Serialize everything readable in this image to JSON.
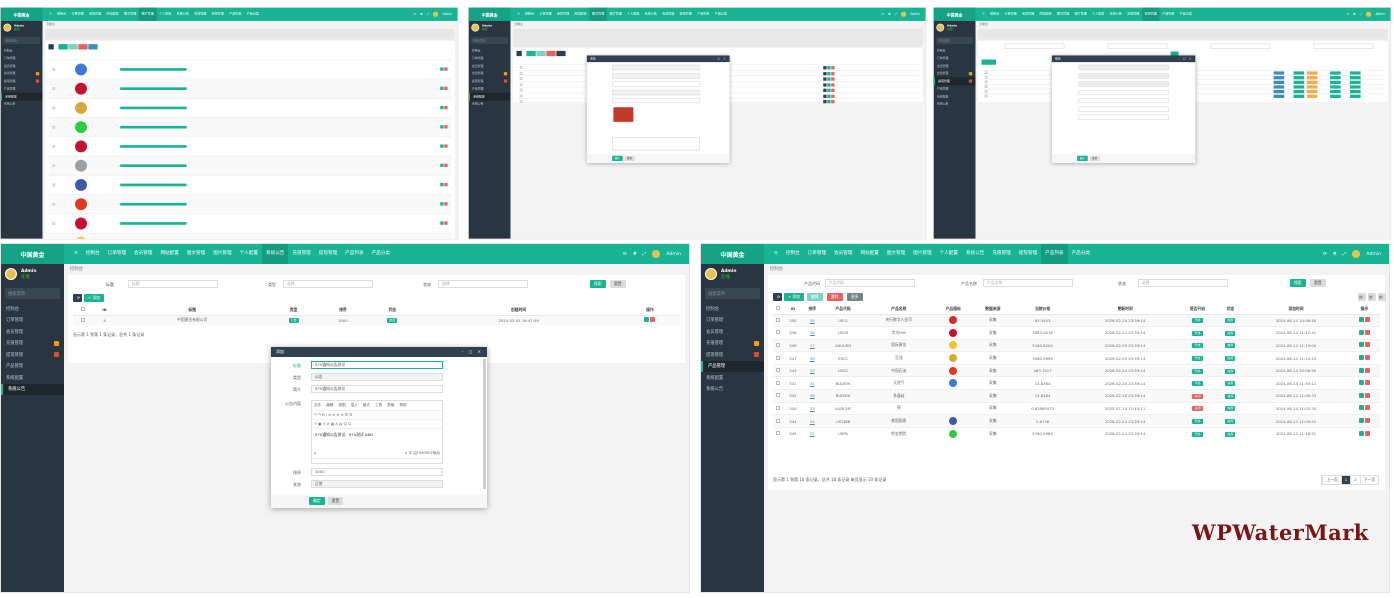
{
  "brand": "中国黄金",
  "user": {
    "name": "Admin",
    "status": "在线"
  },
  "sidebar_search_placeholder": "搜索菜单",
  "breadcrumb": "控制台",
  "top_nav": [
    "控制台",
    "订单管理",
    "会员管理",
    "网站配置",
    "图文管理",
    "图片管理",
    "个人配置",
    "系统公告",
    "充值管理",
    "提现管理",
    "产品列表",
    "产品分类"
  ],
  "sidebar": [
    {
      "label": "控制台"
    },
    {
      "label": "订单管理"
    },
    {
      "label": "会员管理"
    },
    {
      "label": "充值管理",
      "badge_color": "#f39c12"
    },
    {
      "label": "提现管理",
      "badge_color": "#dd4b39"
    },
    {
      "label": "产品管理"
    },
    {
      "label": "系统配置"
    },
    {
      "label": "系统公告"
    }
  ],
  "notice_panel": {
    "filters": [
      {
        "label": "标题",
        "placeholder": "标题"
      },
      {
        "label": "类型",
        "value": "选择"
      },
      {
        "label": "状态",
        "value": "选择"
      }
    ],
    "search_label": "搜索",
    "reset_label": "重置",
    "add_label": "+ 添加",
    "columns": [
      "ID",
      "标题",
      "类型",
      "排序",
      "状态",
      "创建时间",
      "操作"
    ],
    "rows": [
      {
        "id": "4",
        "title": "中国黄金有限公司",
        "type": "公告",
        "sort": "1000",
        "status": "启用",
        "created": "2024-03-05 16:47:59"
      }
    ],
    "footer": "显示第 1 到第 1 条记录，总共 1 条记录",
    "modal": {
      "title": "添加",
      "fields": [
        {
          "label": "标题",
          "value": "970通知公告测试"
        },
        {
          "label": "类型",
          "value": "公告"
        },
        {
          "label": "简介",
          "value": "970通知公告测试"
        }
      ],
      "content_label": "公告内容",
      "editor_menu": [
        "文件",
        "编辑",
        "视图",
        "插入",
        "格式",
        "工具",
        "表格",
        "帮助"
      ],
      "editor_text": "970通知公告测试：970测试 ABD",
      "editor_status": "p",
      "editor_count": "0 字 由TINYMCE驱动",
      "sort_label": "排序",
      "sort_value": "1000",
      "status_label": "状态",
      "status_value": "正常",
      "ok_label": "确定",
      "reset_label": "重置"
    }
  },
  "product_panel": {
    "filters": [
      {
        "label": "产品代码",
        "placeholder": "产品代码"
      },
      {
        "label": "产品名称",
        "placeholder": "产品名称"
      },
      {
        "label": "状态",
        "value": "选择"
      }
    ],
    "search_label": "搜索",
    "reset_label": "重置",
    "toolbar": [
      "+ 添加",
      "编辑",
      "删除",
      "更多"
    ],
    "columns": [
      "ID",
      "排序",
      "产品代码",
      "产品名称",
      "产品图标",
      "数据来源",
      "当前价格",
      "更新时间",
      "是否开启",
      "状态",
      "添加时间",
      "操作"
    ],
    "rows": [
      {
        "id": "350",
        "sort": "35",
        "code": "USCL",
        "name": "央行数字人民币",
        "icon": "#d42a2a",
        "src": "采集",
        "price": "93.5403",
        "updated": "2026-02-24 23:39:14",
        "open": "开启",
        "status": "启用",
        "added": "2024-06-14 10:58:40"
      },
      {
        "id": "348",
        "sort": "36",
        "code": "UK2S",
        "name": "华为HW",
        "icon": "#c8102e",
        "src": "采集",
        "price": "3383.0016",
        "updated": "2026-02-24 23:39:14",
        "open": "开启",
        "status": "启用",
        "added": "2024-06-14 11:12:41"
      },
      {
        "id": "349",
        "sort": "37",
        "code": "XAUUSD",
        "name": "国际黄金",
        "icon": "#f2c230",
        "src": "采集",
        "price": "5169.8204",
        "updated": "2026-02-05 23:39:14",
        "open": "开启",
        "status": "启用",
        "added": "2024-06-14 11:19:00"
      },
      {
        "id": "347",
        "sort": "36",
        "code": "ESCC",
        "name": "豆油",
        "icon": "#d8a836",
        "src": "采集",
        "price": "3060.9995",
        "updated": "2026-02-05 23:39:14",
        "open": "开启",
        "status": "启用",
        "added": "2024-06-14 11:14:25"
      },
      {
        "id": "343",
        "sort": "35",
        "code": "USZC",
        "name": "中国石油",
        "icon": "#e03a1e",
        "src": "采集",
        "price": "463.7517",
        "updated": "2026-02-24 23:39:14",
        "open": "开启",
        "status": "启用",
        "added": "2024-06-14 10:58:50"
      },
      {
        "id": "341",
        "sort": "34",
        "code": "BUDSHI",
        "name": "天然气",
        "icon": "#3a7bd5",
        "src": "采集",
        "price": "14.8364",
        "updated": "2026-02-24 23:39:14",
        "open": "开启",
        "status": "启用",
        "added": "2024-06-14 11:33:11"
      },
      {
        "id": "342",
        "sort": "36",
        "code": "BUDSHI",
        "name": "多晶硅",
        "icon": "",
        "src": "采集",
        "price": "14.8364",
        "updated": "2026-02-28 23:39:14",
        "open": "关闭",
        "status": "启用",
        "added": "2024-06-14 11:00:33"
      },
      {
        "id": "340",
        "sort": "33",
        "code": "AUDCHF",
        "name": "铜",
        "icon": "",
        "src": "采集",
        "price": "0.62865473",
        "updated": "2025-07-14 11:15:11",
        "open": "关闭",
        "status": "启用",
        "added": "2024-06-14 11:02:35"
      },
      {
        "id": "344",
        "sort": "34",
        "code": "US2WB",
        "name": "美国国债",
        "icon": "#3c5aa6",
        "src": "采集",
        "price": "2.6736",
        "updated": "2026-02-24 23:39:14",
        "open": "开启",
        "status": "启用",
        "added": "2024-06-14 11:05:52"
      },
      {
        "id": "345",
        "sort": "32",
        "code": "USPA",
        "name": "钯金期货",
        "icon": "#2ecc40",
        "src": "采集",
        "price": "5760.5984",
        "updated": "2026-02-24 23:39:14",
        "open": "开启",
        "status": "启用",
        "added": "2024-06-14 11:18:51"
      }
    ],
    "footer": "显示第 1 到第 10 条记录，总共 18 条记录 每页显示 10 条记录",
    "pagination": [
      "上一页",
      "1",
      "2",
      "下一页"
    ],
    "current_page": "1"
  },
  "image_panel": {
    "icons": [
      "#3a7bd5",
      "#c8102e",
      "#d8a836",
      "#2ecc40",
      "#c8102e",
      "#9aa0a6",
      "#3c5aa6",
      "#e03a1e",
      "#c8102e",
      "#f2c230"
    ]
  },
  "article_panel": {
    "modal_title": "添加",
    "ok_label": "确定",
    "reset_label": "重置"
  },
  "member_panel": {
    "modal_title": "编辑",
    "ok_label": "确定",
    "reset_label": "重置"
  },
  "watermark": "WPWaterMark",
  "colors": {
    "primary": "#18b493",
    "sidebar": "#2a3542",
    "danger": "#e7625f",
    "header": "#2f4050"
  }
}
